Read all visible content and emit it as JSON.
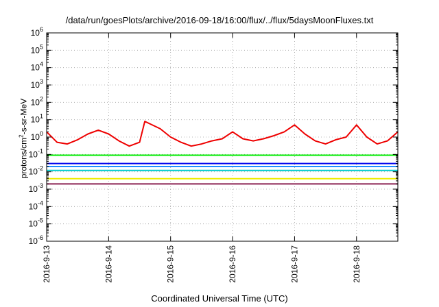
{
  "chart_data": {
    "type": "line",
    "title": "/data/run/goesPlots/archive/2016-09-18/16:00/flux/../flux/5daysMoonFluxes.txt",
    "xlabel": "Coordinated Universal Time (UTC)",
    "ylabel": {
      "base": "protons/cm",
      "exp": "2",
      "rest": "-s-sr-MeV"
    },
    "y_scale": "log",
    "ylim": [
      1e-06,
      1000000.0
    ],
    "y_ticks": [
      {
        "value": 1e-06,
        "base": "10",
        "exp": "-6"
      },
      {
        "value": 1e-05,
        "base": "10",
        "exp": "-5"
      },
      {
        "value": 0.0001,
        "base": "10",
        "exp": "-4"
      },
      {
        "value": 0.001,
        "base": "10",
        "exp": "-3"
      },
      {
        "value": 0.01,
        "base": "10",
        "exp": "-2"
      },
      {
        "value": 0.1,
        "base": "10",
        "exp": "-1"
      },
      {
        "value": 1,
        "base": "10",
        "exp": "0"
      },
      {
        "value": 10,
        "base": "10",
        "exp": "1"
      },
      {
        "value": 100,
        "base": "10",
        "exp": "2"
      },
      {
        "value": 1000,
        "base": "10",
        "exp": "3"
      },
      {
        "value": 10000,
        "base": "10",
        "exp": "4"
      },
      {
        "value": 100000,
        "base": "10",
        "exp": "5"
      },
      {
        "value": 1000000,
        "base": "10",
        "exp": "6"
      }
    ],
    "xlim": [
      "2016-09-13T00:00",
      "2016-09-18T16:00"
    ],
    "x_ticks": [
      "2016-9-13",
      "2016-9-14",
      "2016-9-15",
      "2016-9-16",
      "2016-9-17",
      "2016-9-18"
    ],
    "grid": true,
    "series": [
      {
        "color": "#ee0000",
        "x": [
          "2016-09-13T00:00",
          "2016-09-13T04:00",
          "2016-09-13T08:00",
          "2016-09-13T12:00",
          "2016-09-13T16:00",
          "2016-09-13T20:00",
          "2016-09-14T00:00",
          "2016-09-14T04:00",
          "2016-09-14T08:00",
          "2016-09-14T12:00",
          "2016-09-14T14:00",
          "2016-09-14T20:00",
          "2016-09-15T00:00",
          "2016-09-15T04:00",
          "2016-09-15T08:00",
          "2016-09-15T12:00",
          "2016-09-15T16:00",
          "2016-09-15T20:00",
          "2016-09-16T00:00",
          "2016-09-16T04:00",
          "2016-09-16T08:00",
          "2016-09-16T12:00",
          "2016-09-16T16:00",
          "2016-09-16T20:00",
          "2016-09-17T00:00",
          "2016-09-17T04:00",
          "2016-09-17T08:00",
          "2016-09-17T12:00",
          "2016-09-17T16:00",
          "2016-09-17T20:00",
          "2016-09-18T00:00",
          "2016-09-18T04:00",
          "2016-09-18T08:00",
          "2016-09-18T12:00",
          "2016-09-18T16:00"
        ],
        "y": [
          2.0,
          0.5,
          0.4,
          0.7,
          1.5,
          2.5,
          1.5,
          0.6,
          0.3,
          0.5,
          8.0,
          3.0,
          1.0,
          0.5,
          0.3,
          0.4,
          0.6,
          0.8,
          2.0,
          0.8,
          0.6,
          0.8,
          1.2,
          2.0,
          5.0,
          1.5,
          0.6,
          0.4,
          0.7,
          1.0,
          5.0,
          1.0,
          0.4,
          0.6,
          2.0
        ]
      },
      {
        "color": "#00ee00",
        "x": [
          "2016-09-13T00:00",
          "2016-09-18T16:00"
        ],
        "y": [
          0.09,
          0.09
        ]
      },
      {
        "color": "#0000ee",
        "x": [
          "2016-09-13T00:00",
          "2016-09-18T16:00"
        ],
        "y": [
          0.03,
          0.03
        ]
      },
      {
        "color": "#1e90ff",
        "x": [
          "2016-09-13T00:00",
          "2016-09-18T16:00"
        ],
        "y": [
          0.02,
          0.02
        ]
      },
      {
        "color": "#00cccc",
        "x": [
          "2016-09-13T00:00",
          "2016-09-18T16:00"
        ],
        "y": [
          0.012,
          0.012
        ]
      },
      {
        "color": "#eeee00",
        "x": [
          "2016-09-13T00:00",
          "2016-09-18T16:00"
        ],
        "y": [
          0.004,
          0.004
        ]
      },
      {
        "color": "#8b2252",
        "x": [
          "2016-09-13T00:00",
          "2016-09-18T16:00"
        ],
        "y": [
          0.002,
          0.002
        ]
      }
    ]
  }
}
